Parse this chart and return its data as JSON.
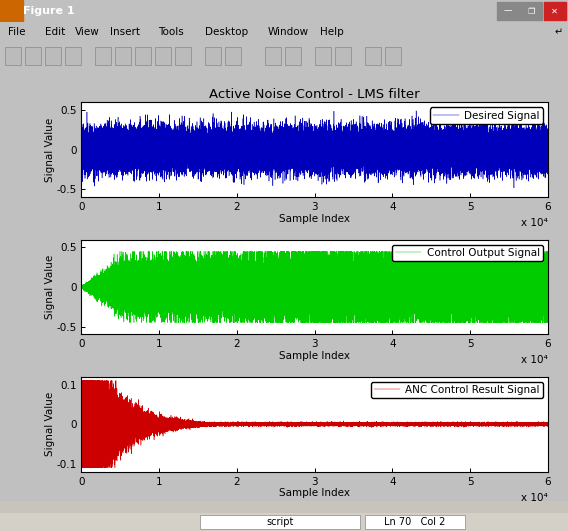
{
  "title": "Active Noise Control - LMS filter",
  "n_samples": 60000,
  "subplot1": {
    "legend": "Desired Signal",
    "color": "#0000BB",
    "ylim": [
      -0.6,
      0.6
    ],
    "yticks": [
      -0.5,
      0,
      0.5
    ],
    "ylabel": "Signal Value",
    "xlabel": "Sample Index"
  },
  "subplot2": {
    "legend": "Control Output Signal",
    "color": "#00CC00",
    "ylim": [
      -0.6,
      0.6
    ],
    "yticks": [
      -0.5,
      0,
      0.5
    ],
    "ylabel": "Signal Value",
    "xlabel": "Sample Index"
  },
  "subplot3": {
    "legend": "ANC Control Result Signal",
    "color": "#CC0000",
    "ylim": [
      -0.12,
      0.12
    ],
    "yticks": [
      -0.1,
      0,
      0.1
    ],
    "ylabel": "Signal Value",
    "xlabel": "Sample Index"
  },
  "outer_bg": "#C0C0C0",
  "plot_area_bg": "#C8C8C8",
  "titlebar_color": "#0000AA",
  "titlebar_text": "Figure 1",
  "menubar_bg": "#D4D0C8",
  "menubar_items": [
    "File",
    "Edit",
    "View",
    "Insert",
    "Tools",
    "Desktop",
    "Window",
    "Help"
  ],
  "statusbar_text": "script",
  "statusbar_rc": "Ln 70   Col 2",
  "xlim": [
    0,
    60000
  ],
  "xticks": [
    0,
    10000,
    20000,
    30000,
    40000,
    50000,
    60000
  ],
  "xticklabels": [
    "0",
    "1",
    "2",
    "3",
    "4",
    "5",
    "6"
  ],
  "x10e4_label": "x 10⁴"
}
